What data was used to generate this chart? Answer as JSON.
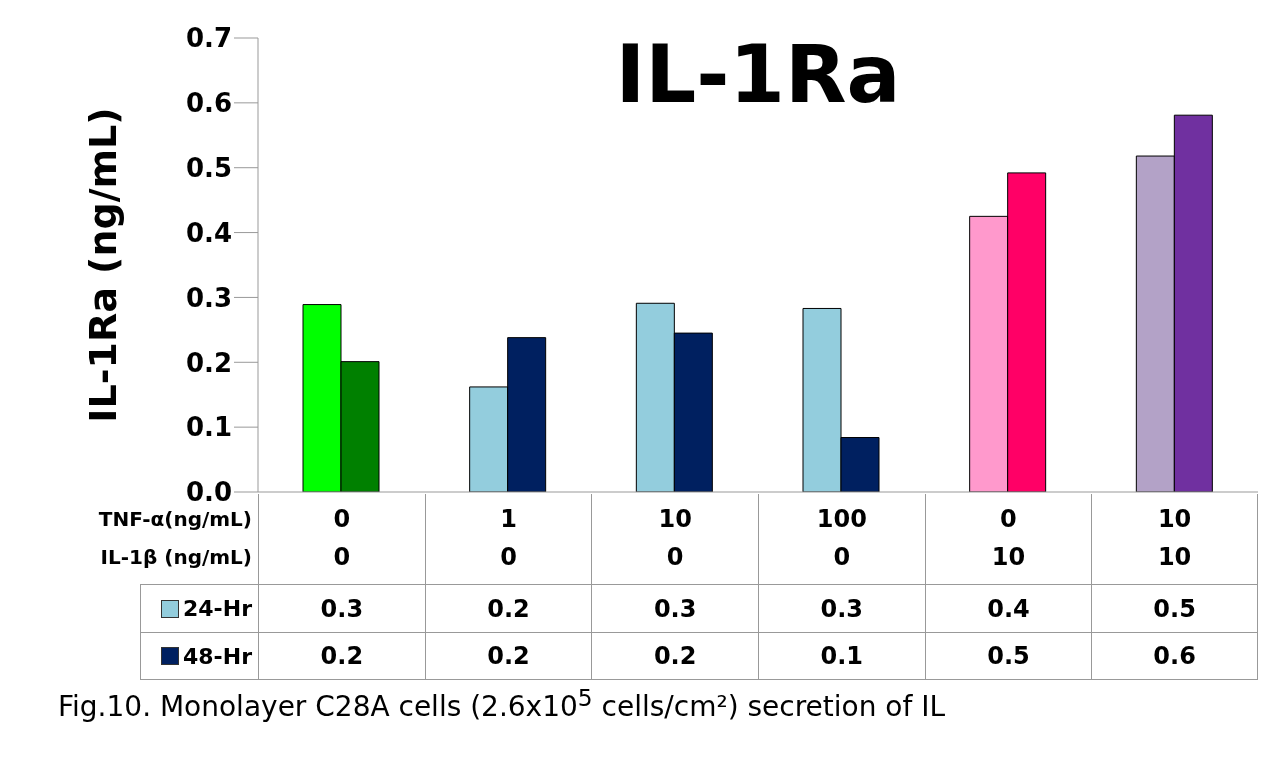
{
  "chart_data": {
    "type": "bar",
    "title": "IL-1Ra",
    "ylabel": "IL-1Ra (ng/mL)",
    "categories": [
      "0\n0",
      "1\n0",
      "10\n0",
      "100\n0",
      "0\n10",
      "10\n10"
    ],
    "series": [
      {
        "name": "24-Hr",
        "color": "#93cddd",
        "colors": [
          "#00ff00",
          "#93cddd",
          "#93cddd",
          "#93cddd",
          "#ff99cc",
          "#b3a2c7"
        ],
        "values": [
          0.289,
          0.162,
          0.291,
          0.283,
          0.425,
          0.518
        ],
        "value_labels": [
          "0.3",
          "0.2",
          "0.3",
          "0.3",
          "0.4",
          "0.5"
        ]
      },
      {
        "name": "48-Hr",
        "color": "#002060",
        "colors": [
          "#008000",
          "#002060",
          "#002060",
          "#002060",
          "#ff0066",
          "#7030a0"
        ],
        "values": [
          0.201,
          0.238,
          0.245,
          0.084,
          0.492,
          0.581
        ],
        "value_labels": [
          "0.2",
          "0.2",
          "0.2",
          "0.1",
          "0.5",
          "0.6"
        ]
      }
    ],
    "ylim": [
      0,
      0.7
    ],
    "yticks": [
      {
        "value": 0,
        "label": "0.0"
      },
      0.1,
      0.2,
      0.3,
      0.4,
      0.5,
      0.6,
      0.7
    ],
    "legend": "bottom",
    "annotations": [
      "TNF-α(ng/mL)",
      "IL-1β (ng/mL)",
      "Fig.10. Monolayer C28A cells (2.6x10$^{5}$ cells/cm²) secretion of IL"
    ]
  }
}
